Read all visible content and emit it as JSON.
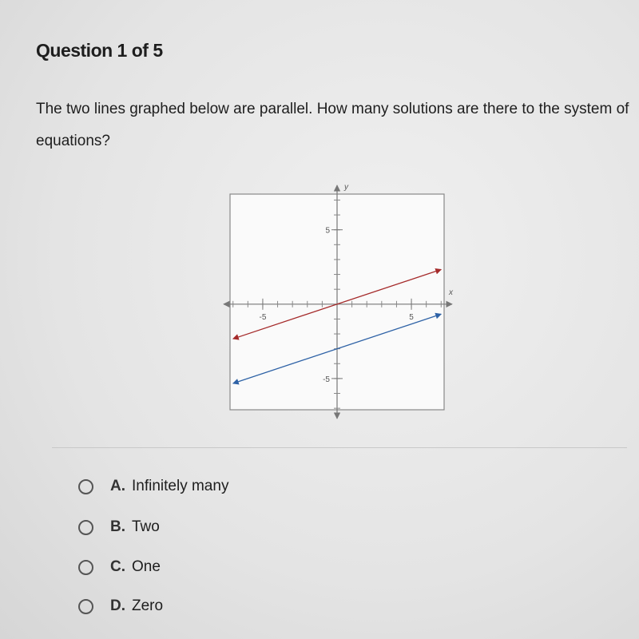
{
  "header": {
    "title": "Question 1 of 5"
  },
  "question": {
    "text": "The two lines graphed below are parallel. How many solutions are there to the system of equations?"
  },
  "graph": {
    "type": "line",
    "x_label": "x",
    "y_label": "y",
    "xlim": [
      -7.2,
      7.2
    ],
    "ylim": [
      -7.1,
      7.4
    ],
    "xticks": [
      -5,
      5
    ],
    "yticks": [
      -5,
      5
    ],
    "series": [
      {
        "color": "#a52a2a",
        "x": [
          -7,
          7
        ],
        "values": [
          -2.33,
          2.33
        ]
      },
      {
        "color": "#2e62a6",
        "x": [
          -7,
          7
        ],
        "values": [
          -5.33,
          -0.67
        ]
      }
    ]
  },
  "options": [
    {
      "letter": "A.",
      "text": "Infinitely many"
    },
    {
      "letter": "B.",
      "text": "Two"
    },
    {
      "letter": "C.",
      "text": "One"
    },
    {
      "letter": "D.",
      "text": "Zero"
    }
  ]
}
